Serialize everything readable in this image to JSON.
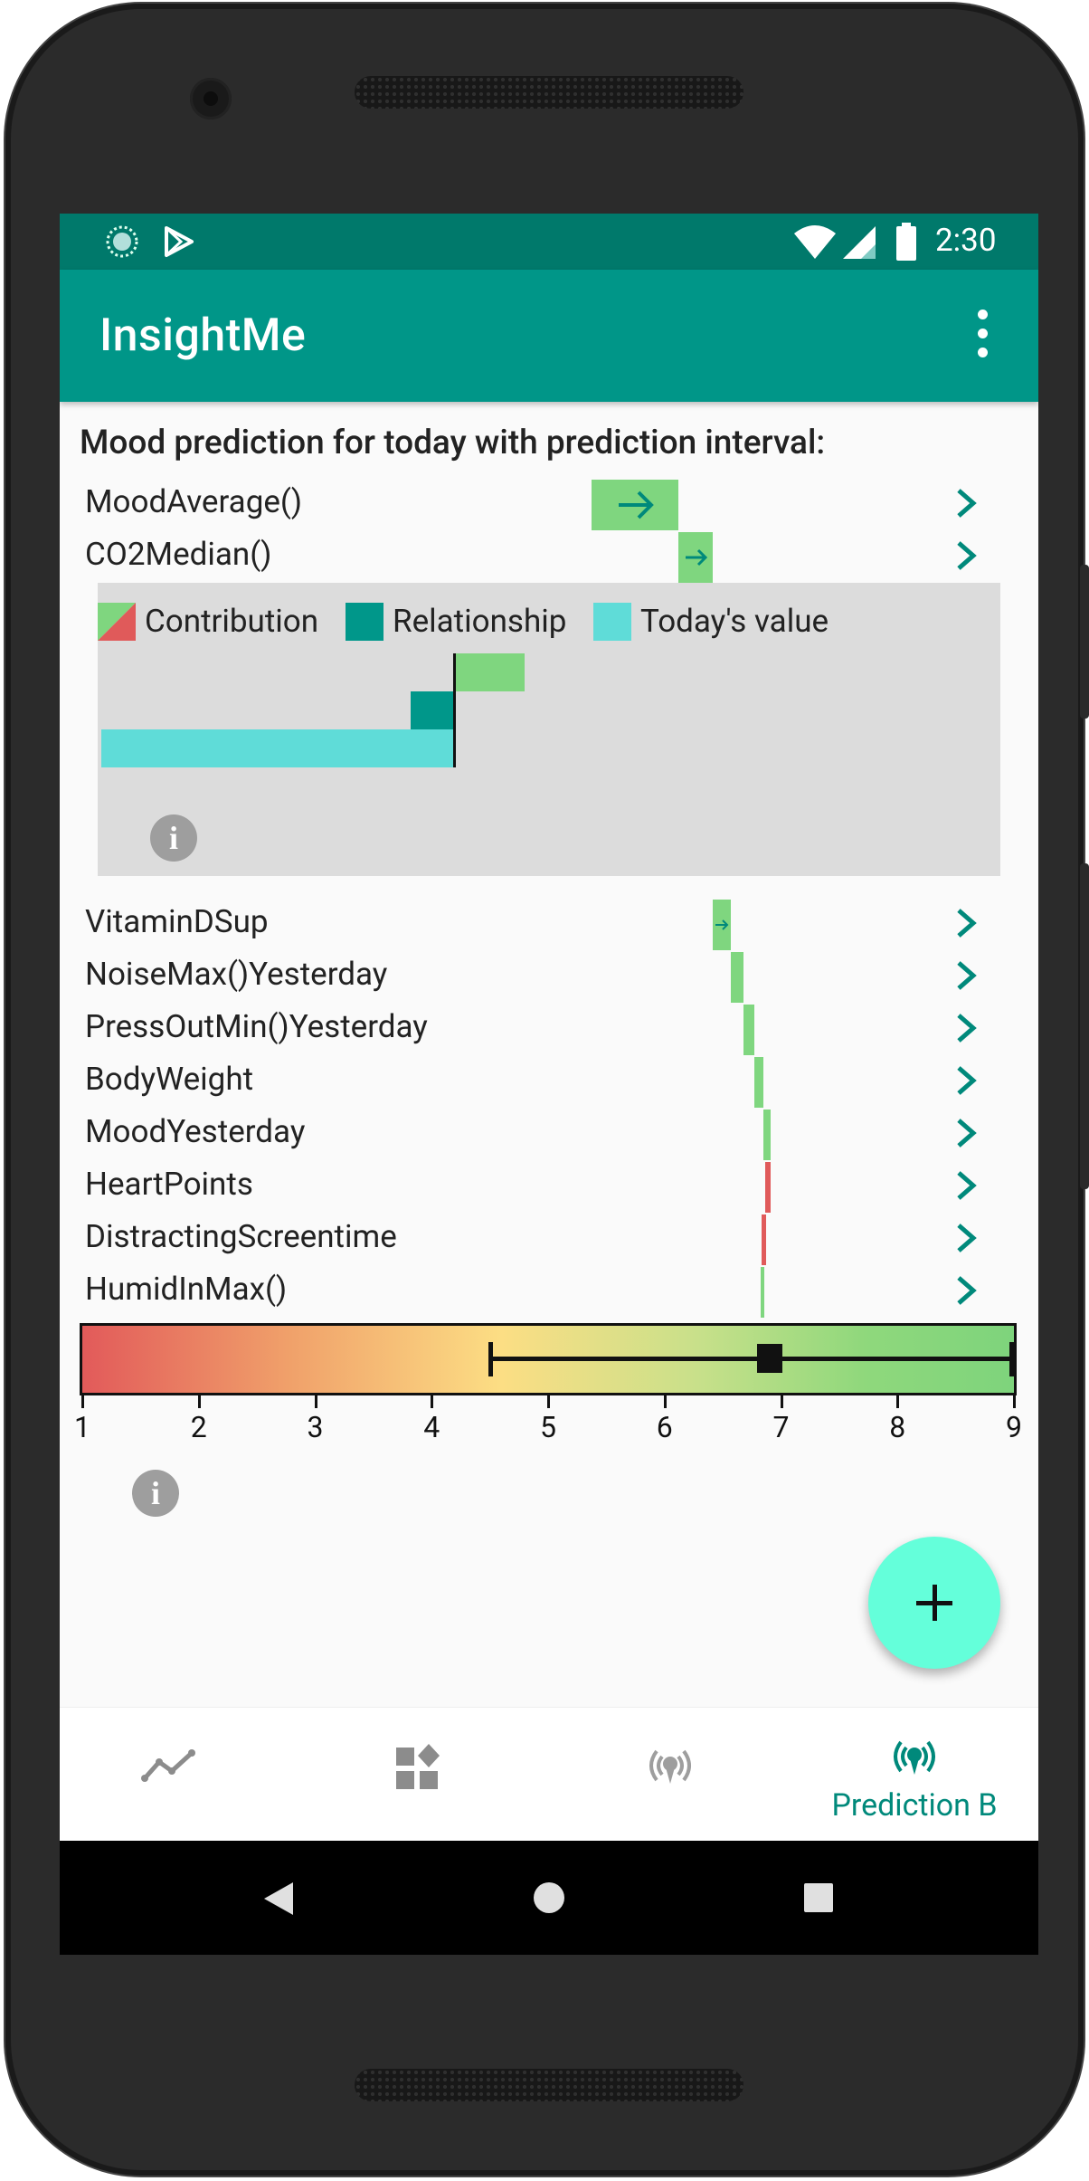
{
  "status_bar": {
    "time": "2:30"
  },
  "app_bar": {
    "title": "InsightMe"
  },
  "heading": "Mood prediction for today with prediction interval:",
  "predictors": [
    {
      "label": "MoodAverage()"
    },
    {
      "label": "CO2Median()"
    },
    {
      "label": "VitaminDSup"
    },
    {
      "label": "NoiseMax()Yesterday"
    },
    {
      "label": "PressOutMin()Yesterday"
    },
    {
      "label": "BodyWeight"
    },
    {
      "label": "MoodYesterday"
    },
    {
      "label": "HeartPoints"
    },
    {
      "label": "DistractingScreentime"
    },
    {
      "label": "HumidInMax()"
    }
  ],
  "legend": {
    "contribution": "Contribution",
    "relationship": "Relationship",
    "todays_value": "Today's value"
  },
  "scale": {
    "ticks": [
      "1",
      "2",
      "3",
      "4",
      "5",
      "6",
      "7",
      "8",
      "9"
    ],
    "prediction": 6.9,
    "interval_low": 4.5,
    "interval_high": 9.0
  },
  "bottom_nav": {
    "active_label": "Prediction B"
  },
  "colors": {
    "primary": "#009688",
    "primary_dark": "#00796b",
    "accent": "#64ffda",
    "positive": "#7fd67f",
    "negative": "#e05a5a",
    "relationship": "#00978a",
    "todays_value": "#5fdcd8"
  }
}
